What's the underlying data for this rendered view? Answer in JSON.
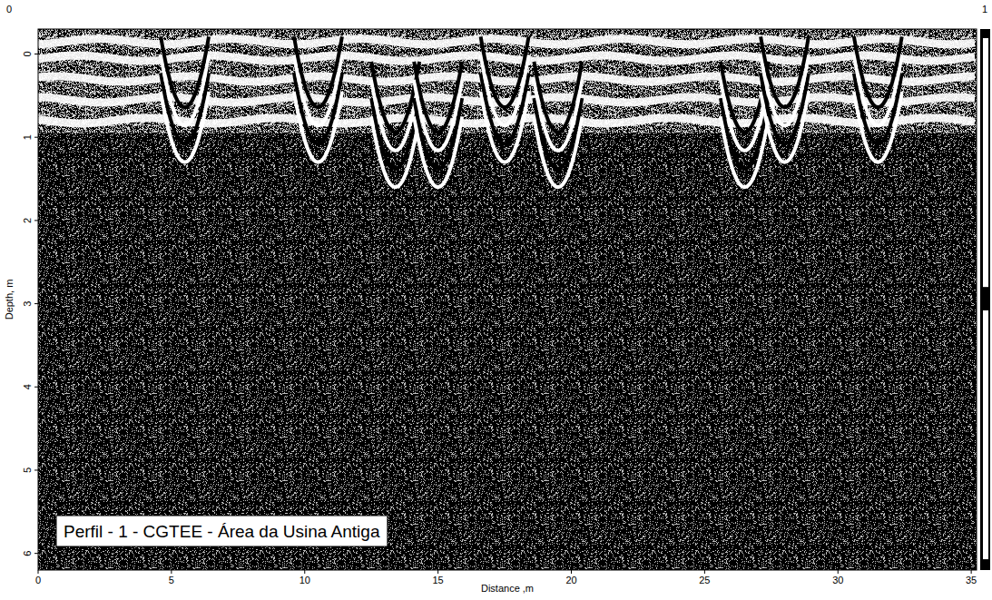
{
  "chart_data": {
    "type": "radargram",
    "title": "Perfil - 1 - CGTEE - Área da Usina Antiga",
    "x_label": "Distance ,m",
    "y_label": "Depth, m",
    "xlim": [
      0,
      35.2
    ],
    "xticks": [
      0,
      5,
      10,
      15,
      20,
      25,
      30,
      35
    ],
    "ylim": [
      -0.3,
      6.2
    ],
    "yticks": [
      0,
      1,
      2,
      3,
      4,
      5,
      6
    ],
    "colorbar_range": [
      0,
      1
    ],
    "colorbar_ticks": [
      0,
      1
    ],
    "reflector_depths": [
      -0.15,
      0.05,
      0.3,
      0.55,
      0.8
    ],
    "hyperbolas": [
      {
        "x": 5.5,
        "depth": 1.3
      },
      {
        "x": 10.5,
        "depth": 1.3
      },
      {
        "x": 13.4,
        "depth": 1.6
      },
      {
        "x": 15.0,
        "depth": 1.6
      },
      {
        "x": 17.5,
        "depth": 1.3
      },
      {
        "x": 19.5,
        "depth": 1.6
      },
      {
        "x": 26.5,
        "depth": 1.6
      },
      {
        "x": 28.0,
        "depth": 1.3
      },
      {
        "x": 31.5,
        "depth": 1.3
      }
    ]
  }
}
